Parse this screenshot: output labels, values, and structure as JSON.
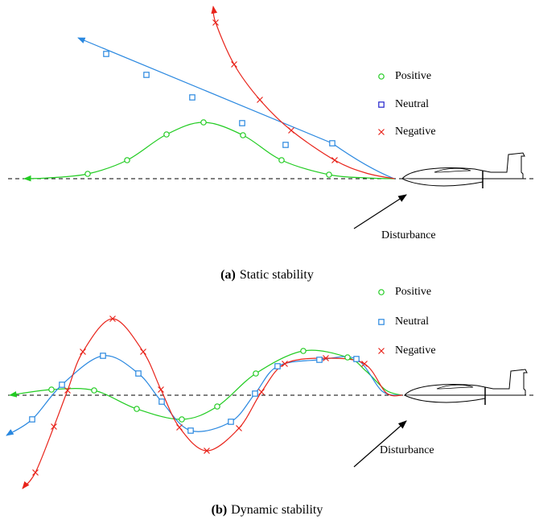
{
  "panels": [
    {
      "caption_label": "(a)",
      "caption": "Static stability",
      "legend": [
        "Positive",
        "Neutral",
        "Negative"
      ],
      "annotation": "Disturbance"
    },
    {
      "caption_label": "(b)",
      "caption": "Dynamic stability",
      "legend": [
        "Positive",
        "Neutral",
        "Negative"
      ],
      "annotation": "Disturbance"
    }
  ]
}
